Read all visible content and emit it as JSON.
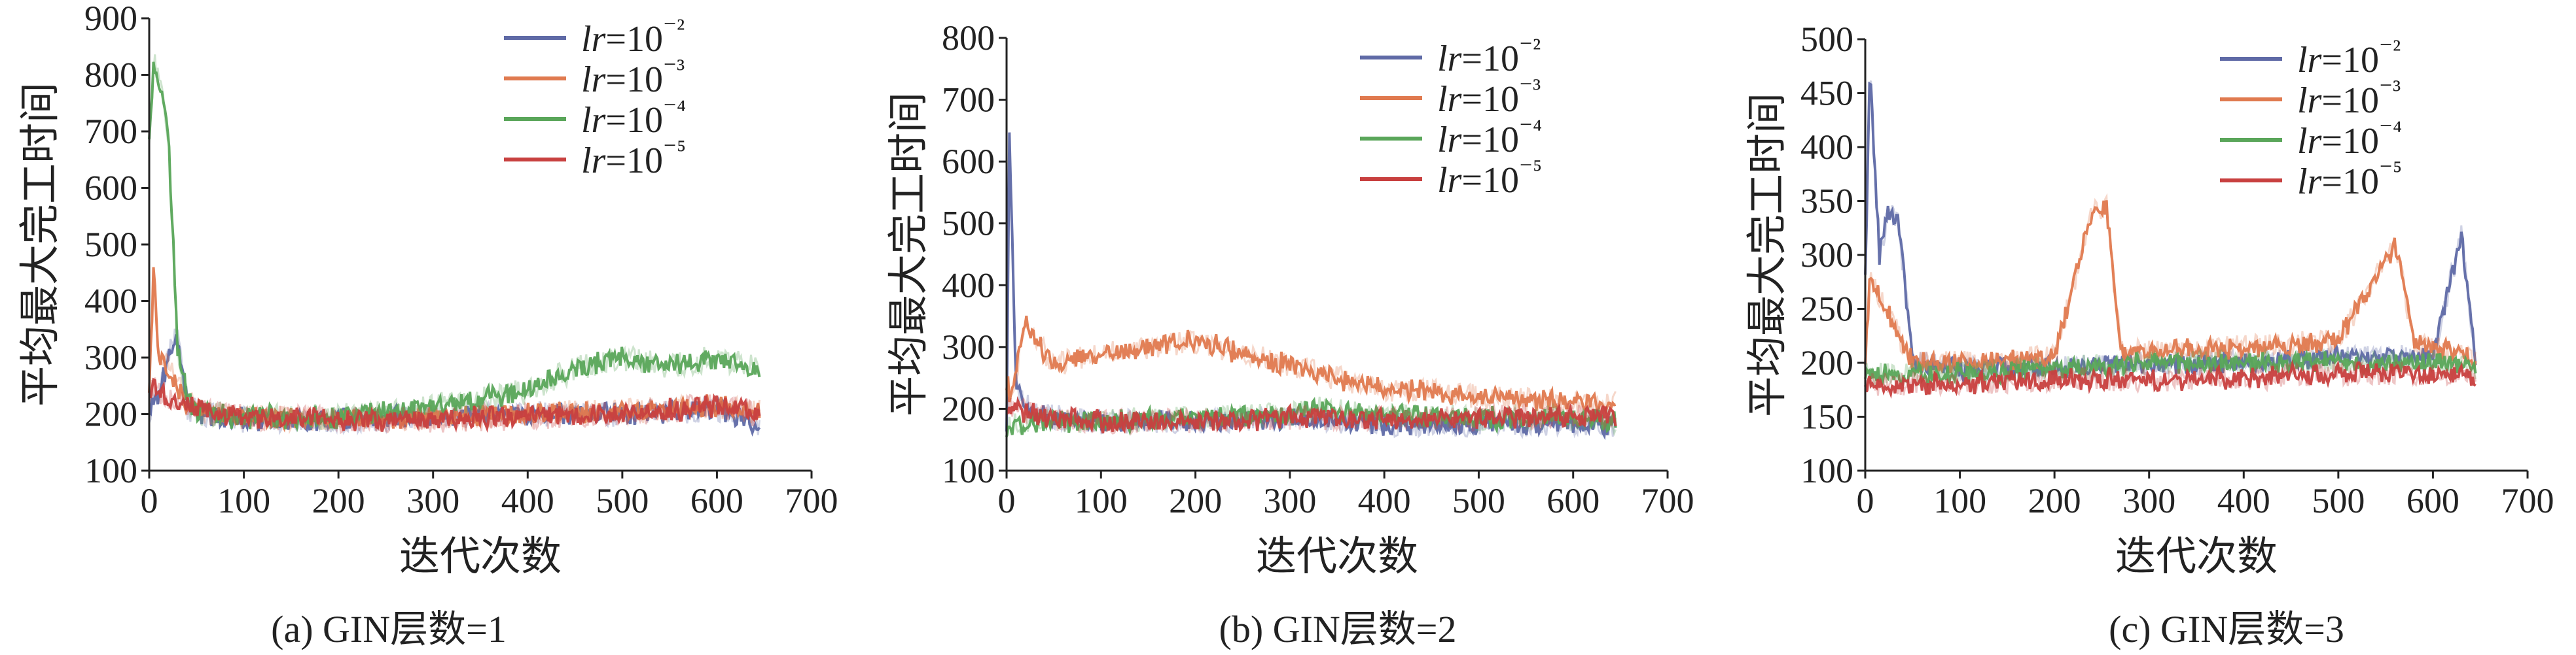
{
  "chart_data": [
    {
      "type": "line",
      "caption": "(a) GIN层数=1",
      "xlabel": "迭代次数",
      "ylabel": "平均最大完工时间",
      "xlim": [
        0,
        700
      ],
      "ylim": [
        100,
        900
      ],
      "xticks": [
        "0",
        "100",
        "200",
        "300",
        "400",
        "500",
        "600",
        "700"
      ],
      "yticks": [
        "100",
        "200",
        "300",
        "400",
        "500",
        "600",
        "700",
        "800",
        "900"
      ],
      "legend_position": "top-right",
      "series": [
        {
          "name": "lr=10⁻²",
          "color": "#5f6aa6",
          "x": [
            0,
            5,
            10,
            20,
            30,
            40,
            60,
            100,
            200,
            300,
            400,
            500,
            600,
            645
          ],
          "y": [
            200,
            240,
            230,
            300,
            340,
            210,
            200,
            190,
            190,
            195,
            200,
            200,
            210,
            185
          ]
        },
        {
          "name": "lr=10⁻³",
          "color": "#e07a4f",
          "x": [
            0,
            5,
            10,
            20,
            30,
            40,
            60,
            100,
            200,
            300,
            400,
            500,
            600,
            645
          ],
          "y": [
            240,
            460,
            300,
            280,
            250,
            220,
            205,
            195,
            190,
            195,
            200,
            205,
            215,
            205
          ]
        },
        {
          "name": "lr=10⁻⁴",
          "color": "#5aa65a",
          "x": [
            0,
            5,
            10,
            20,
            30,
            40,
            50,
            100,
            200,
            300,
            400,
            450,
            500,
            550,
            600,
            645
          ],
          "y": [
            680,
            820,
            790,
            700,
            320,
            230,
            200,
            195,
            195,
            215,
            240,
            280,
            300,
            285,
            300,
            280
          ]
        },
        {
          "name": "lr=10⁻⁵",
          "color": "#c8403f",
          "x": [
            0,
            5,
            10,
            20,
            30,
            40,
            60,
            100,
            200,
            300,
            400,
            500,
            600,
            645
          ],
          "y": [
            240,
            250,
            240,
            230,
            220,
            215,
            205,
            195,
            190,
            190,
            195,
            200,
            215,
            200
          ]
        }
      ]
    },
    {
      "type": "line",
      "caption": "(b) GIN层数=2",
      "xlabel": "迭代次数",
      "ylabel": "平均最大完工时间",
      "xlim": [
        0,
        700
      ],
      "ylim": [
        100,
        800
      ],
      "xticks": [
        "0",
        "100",
        "200",
        "300",
        "400",
        "500",
        "600",
        "700"
      ],
      "yticks": [
        "100",
        "200",
        "300",
        "400",
        "500",
        "600",
        "700",
        "800"
      ],
      "legend_position": "top-right",
      "series": [
        {
          "name": "lr=10⁻²",
          "color": "#5f6aa6",
          "x": [
            0,
            3,
            10,
            30,
            100,
            200,
            300,
            400,
            500,
            600,
            645
          ],
          "y": [
            180,
            640,
            230,
            190,
            180,
            180,
            185,
            175,
            175,
            175,
            175
          ]
        },
        {
          "name": "lr=10⁻³",
          "color": "#e07a4f",
          "x": [
            0,
            5,
            20,
            50,
            100,
            150,
            200,
            250,
            300,
            350,
            400,
            450,
            500,
            550,
            600,
            645
          ],
          "y": [
            240,
            220,
            340,
            270,
            290,
            300,
            310,
            290,
            270,
            250,
            230,
            230,
            220,
            215,
            210,
            215
          ]
        },
        {
          "name": "lr=10⁻⁴",
          "color": "#5aa65a",
          "x": [
            0,
            10,
            50,
            100,
            200,
            300,
            330,
            400,
            500,
            600,
            645
          ],
          "y": [
            170,
            175,
            180,
            180,
            185,
            190,
            200,
            190,
            185,
            185,
            180
          ]
        },
        {
          "name": "lr=10⁻⁵",
          "color": "#c8403f",
          "x": [
            0,
            10,
            50,
            100,
            200,
            300,
            400,
            500,
            600,
            645
          ],
          "y": [
            200,
            200,
            185,
            180,
            180,
            185,
            185,
            185,
            190,
            185
          ]
        }
      ]
    },
    {
      "type": "line",
      "caption": "(c) GIN层数=3",
      "xlabel": "迭代次数",
      "ylabel": "平均最大完工时间",
      "xlim": [
        0,
        700
      ],
      "ylim": [
        100,
        500
      ],
      "xticks": [
        "0",
        "100",
        "200",
        "300",
        "400",
        "500",
        "600",
        "700"
      ],
      "yticks": [
        "100",
        "150",
        "200",
        "250",
        "300",
        "350",
        "400",
        "450",
        "500"
      ],
      "legend_position": "top-right",
      "series": [
        {
          "name": "lr=10⁻²",
          "color": "#5f6aa6",
          "x": [
            0,
            5,
            15,
            25,
            35,
            50,
            100,
            200,
            300,
            400,
            500,
            600,
            630,
            645
          ],
          "y": [
            280,
            470,
            300,
            340,
            330,
            200,
            195,
            195,
            200,
            200,
            205,
            205,
            320,
            200
          ]
        },
        {
          "name": "lr=10⁻³",
          "color": "#e07a4f",
          "x": [
            0,
            5,
            50,
            100,
            200,
            240,
            255,
            270,
            300,
            400,
            500,
            560,
            580,
            600,
            645
          ],
          "y": [
            200,
            280,
            200,
            200,
            205,
            340,
            345,
            210,
            210,
            215,
            220,
            310,
            220,
            215,
            205
          ]
        },
        {
          "name": "lr=10⁻⁴",
          "color": "#5aa65a",
          "x": [
            0,
            50,
            100,
            200,
            300,
            400,
            500,
            600,
            645
          ],
          "y": [
            190,
            190,
            190,
            195,
            200,
            200,
            200,
            200,
            195
          ]
        },
        {
          "name": "lr=10⁻⁵",
          "color": "#c8403f",
          "x": [
            0,
            50,
            100,
            200,
            300,
            400,
            500,
            600,
            645
          ],
          "y": [
            180,
            180,
            180,
            185,
            185,
            185,
            190,
            190,
            185
          ]
        }
      ]
    }
  ]
}
